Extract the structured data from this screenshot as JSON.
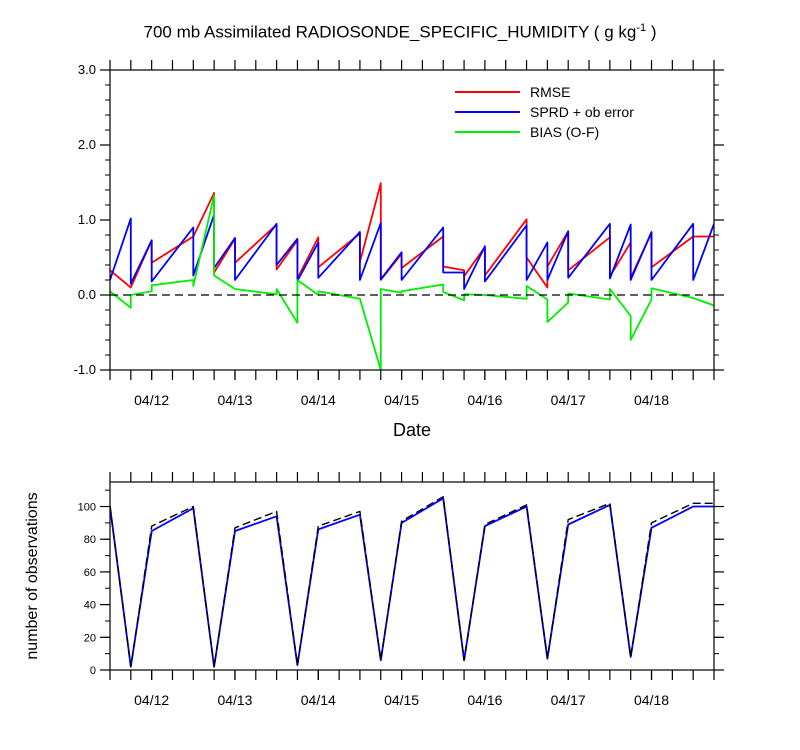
{
  "title": {
    "main": "700 mb Assimilated RADIOSONDE_SPECIFIC_HUMIDITY ( g kg",
    "sup": "-1",
    "tail": " )"
  },
  "chart_data": [
    {
      "type": "line",
      "xlabel": "Date",
      "ylabel": "",
      "xlim": [
        0,
        7.25
      ],
      "ylim": [
        -1.0,
        3.0
      ],
      "xticks": [
        0.5,
        1.5,
        2.5,
        3.5,
        4.5,
        5.5,
        6.5
      ],
      "xticklabels": [
        "04/12",
        "04/13",
        "04/14",
        "04/15",
        "04/16",
        "04/17",
        "04/18"
      ],
      "yticks": [
        -1.0,
        0.0,
        1.0,
        2.0,
        3.0
      ],
      "yticklabels": [
        "-1.0",
        "0.0",
        "1.0",
        "2.0",
        "3.0"
      ],
      "legend_position": "top-right",
      "reference_line": 0.0,
      "series": [
        {
          "name": "RMSE",
          "color": "#ff0000",
          "x": [
            0,
            0.25,
            0.25,
            0.5,
            0.5,
            1.0,
            1.0,
            1.25,
            1.25,
            1.5,
            1.5,
            2.0,
            2.0,
            2.25,
            2.25,
            2.5,
            2.5,
            3.0,
            3.0,
            3.25,
            3.25,
            3.5,
            3.5,
            4.0,
            4.0,
            4.25,
            4.25,
            4.5,
            4.5,
            5.0,
            5.0,
            5.25,
            5.25,
            5.5,
            5.5,
            6.0,
            6.0,
            6.25,
            6.25,
            6.5,
            6.5,
            7.0,
            7.0,
            7.25
          ],
          "y": [
            0.33,
            0.1,
            0.1,
            0.73,
            0.43,
            0.78,
            0.78,
            1.36,
            0.3,
            0.75,
            0.43,
            0.94,
            0.34,
            0.73,
            0.22,
            0.77,
            0.37,
            0.82,
            0.44,
            1.49,
            0.2,
            0.55,
            0.36,
            0.78,
            0.38,
            0.33,
            0.25,
            0.64,
            0.26,
            1.01,
            0.5,
            0.1,
            0.38,
            0.85,
            0.33,
            0.77,
            0.25,
            0.7,
            0.23,
            0.83,
            0.37,
            0.78,
            0.78,
            0.78
          ]
        },
        {
          "name": "SPRD + ob error",
          "color": "#0000ff",
          "x": [
            0,
            0.25,
            0.25,
            0.5,
            0.5,
            1.0,
            1.0,
            1.25,
            1.25,
            1.5,
            1.5,
            2.0,
            2.0,
            2.25,
            2.25,
            2.5,
            2.5,
            3.0,
            3.0,
            3.25,
            3.25,
            3.5,
            3.5,
            4.0,
            4.0,
            4.25,
            4.25,
            4.5,
            4.5,
            5.0,
            5.0,
            5.25,
            5.25,
            5.5,
            5.5,
            6.0,
            6.0,
            6.25,
            6.25,
            6.5,
            6.5,
            7.0,
            7.0,
            7.25
          ],
          "y": [
            0.2,
            1.02,
            0.15,
            0.73,
            0.18,
            0.9,
            0.26,
            1.07,
            0.36,
            0.76,
            0.2,
            0.95,
            0.4,
            0.75,
            0.19,
            0.7,
            0.23,
            0.84,
            0.2,
            0.96,
            0.21,
            0.57,
            0.2,
            0.9,
            0.3,
            0.3,
            0.08,
            0.65,
            0.18,
            0.93,
            0.2,
            0.7,
            0.2,
            0.85,
            0.23,
            0.95,
            0.22,
            0.94,
            0.2,
            0.84,
            0.2,
            0.95,
            0.2,
            0.95
          ]
        },
        {
          "name": "BIAS (O-F)",
          "color": "#00ee00",
          "x": [
            0,
            0.25,
            0.25,
            0.5,
            0.5,
            1.0,
            1.0,
            1.25,
            1.25,
            1.5,
            1.5,
            2.0,
            2.0,
            2.25,
            2.25,
            2.5,
            2.5,
            3.0,
            3.0,
            3.25,
            3.25,
            3.5,
            3.5,
            4.0,
            4.0,
            4.25,
            4.25,
            4.5,
            4.5,
            5.0,
            5.0,
            5.25,
            5.25,
            5.5,
            5.5,
            6.0,
            6.0,
            6.25,
            6.25,
            6.5,
            6.5,
            7.0,
            7.0,
            7.25
          ],
          "y": [
            0.05,
            -0.17,
            0.0,
            0.05,
            0.13,
            0.2,
            0.12,
            1.33,
            0.26,
            0.08,
            0.08,
            0.01,
            0.08,
            -0.37,
            0.2,
            0.0,
            0.05,
            -0.05,
            -0.05,
            -1.0,
            0.08,
            0.03,
            0.05,
            0.14,
            0.04,
            -0.07,
            0.01,
            0.0,
            0.0,
            -0.05,
            0.12,
            -0.06,
            -0.36,
            -0.1,
            0.02,
            -0.06,
            0.08,
            -0.28,
            -0.6,
            -0.06,
            0.09,
            -0.04,
            -0.04,
            -0.14
          ]
        }
      ]
    },
    {
      "type": "line",
      "xlabel": "",
      "ylabel": "number of observations",
      "xlim": [
        0,
        7.25
      ],
      "ylim": [
        0,
        115
      ],
      "xticks": [
        0.5,
        1.5,
        2.5,
        3.5,
        4.5,
        5.5,
        6.5
      ],
      "xticklabels": [
        "04/12",
        "04/13",
        "04/14",
        "04/15",
        "04/16",
        "04/17",
        "04/18"
      ],
      "yticks": [
        0,
        20,
        40,
        60,
        80,
        100
      ],
      "yticklabels": [
        "0",
        "20",
        "40",
        "60",
        "80",
        "100"
      ],
      "series": [
        {
          "color": "#0000ff",
          "x": [
            0,
            0.25,
            0.5,
            1.0,
            1.25,
            1.5,
            2.0,
            2.25,
            2.5,
            3.0,
            3.25,
            3.5,
            4.0,
            4.25,
            4.5,
            5.0,
            5.25,
            5.5,
            6.0,
            6.25,
            6.5,
            7.0,
            7.25
          ],
          "y": [
            100,
            2,
            85,
            99,
            2,
            85,
            94,
            3,
            86,
            95,
            6,
            90,
            105,
            6,
            88,
            100,
            7,
            89,
            101,
            8,
            87,
            100,
            100
          ]
        },
        {
          "color": "#000000",
          "dashed": true,
          "x": [
            0,
            0.25,
            0.5,
            1.0,
            1.25,
            1.5,
            2.0,
            2.25,
            2.5,
            3.0,
            3.25,
            3.5,
            4.0,
            4.25,
            4.5,
            5.0,
            5.25,
            5.5,
            6.0,
            6.25,
            6.5,
            7.0,
            7.25
          ],
          "y": [
            100,
            2,
            88,
            100,
            2,
            87,
            97,
            3,
            88,
            97,
            6,
            91,
            106,
            6,
            89,
            101,
            7,
            92,
            102,
            8,
            90,
            102,
            102
          ]
        }
      ]
    }
  ]
}
